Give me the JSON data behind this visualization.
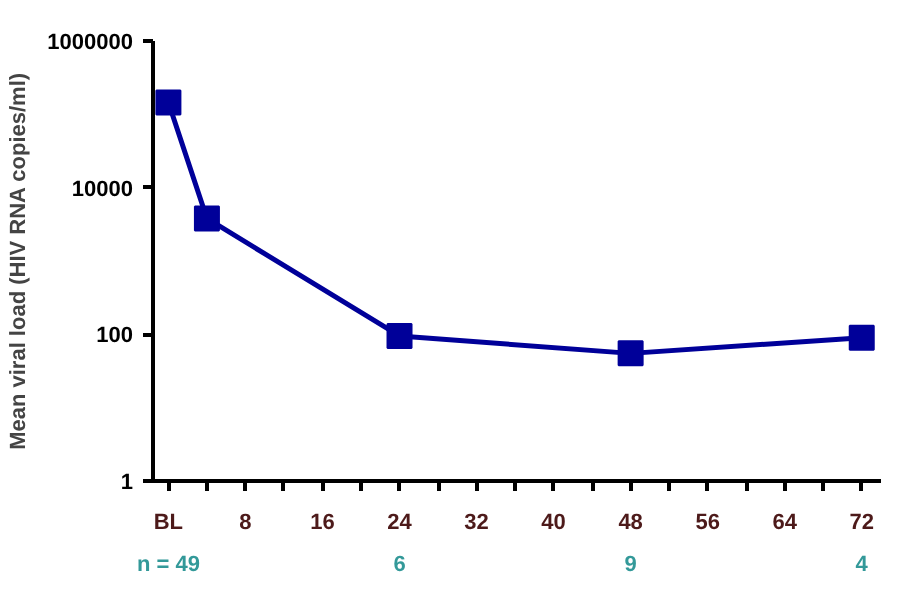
{
  "chart_data": {
    "type": "line",
    "ylabel": "Mean viral load (HIV RNA copies/ml)",
    "x": [
      0,
      4,
      24,
      48,
      72
    ],
    "series": [
      {
        "color": "#000099",
        "values": [
          145000,
          3800,
          95,
          55,
          90
        ]
      }
    ],
    "marker": "square",
    "line_style": "solid",
    "log": "y",
    "grid": false,
    "xlim": [
      -1.6,
      74
    ],
    "xticks": [
      {
        "value": 0,
        "label": "BL"
      },
      {
        "value": 4,
        "label": null
      },
      8,
      {
        "value": 12,
        "label": null
      },
      16,
      {
        "value": 20,
        "label": null
      },
      24,
      {
        "value": 28,
        "label": null
      },
      32,
      {
        "value": 36,
        "label": null
      },
      40,
      {
        "value": 44,
        "label": null
      },
      48,
      {
        "value": 52,
        "label": null
      },
      56,
      {
        "value": 60,
        "label": null
      },
      64,
      {
        "value": 68,
        "label": null
      },
      72
    ],
    "ylim": [
      1,
      1000000
    ],
    "yticks": [
      1,
      100,
      10000,
      1000000
    ],
    "annotations": [
      "n = 49",
      "6",
      "9",
      "4"
    ]
  }
}
